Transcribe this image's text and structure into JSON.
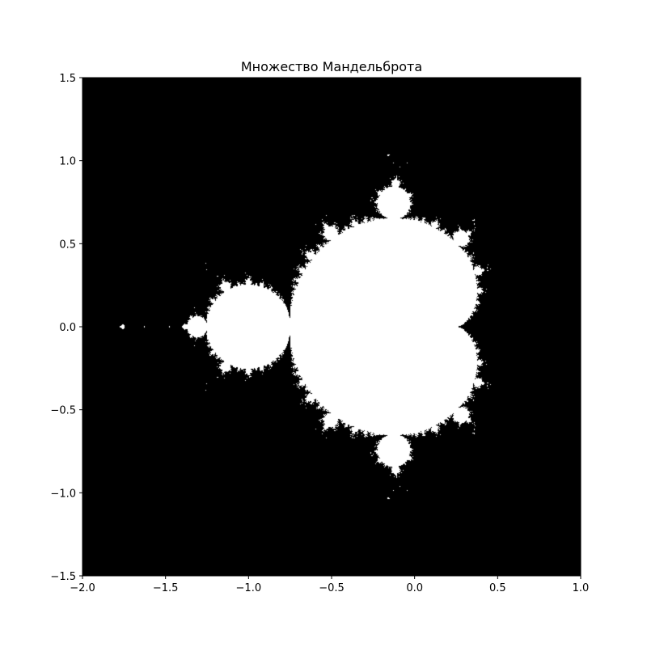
{
  "chart_data": {
    "type": "heatmap",
    "title": "Множество Мандельброта",
    "xlabel": "",
    "ylabel": "",
    "xlim": [
      -2.0,
      1.0
    ],
    "ylim": [
      -1.5,
      1.5
    ],
    "xticks": [
      {
        "value": -2.0,
        "label": "−2.0"
      },
      {
        "value": -1.5,
        "label": "−1.5"
      },
      {
        "value": -1.0,
        "label": "−1.0"
      },
      {
        "value": -0.5,
        "label": "−0.5"
      },
      {
        "value": 0.0,
        "label": "0.0"
      },
      {
        "value": 0.5,
        "label": "0.5"
      },
      {
        "value": 1.0,
        "label": "1.0"
      }
    ],
    "yticks": [
      {
        "value": -1.5,
        "label": "−1.5"
      },
      {
        "value": -1.0,
        "label": "−1.0"
      },
      {
        "value": -0.5,
        "label": "−0.5"
      },
      {
        "value": 0.0,
        "label": "0.0"
      },
      {
        "value": 0.5,
        "label": "0.5"
      },
      {
        "value": 1.0,
        "label": "1.0"
      },
      {
        "value": 1.5,
        "label": "1.5"
      }
    ],
    "grid": false,
    "colormap": {
      "in_set": "#ffffff",
      "outside": "#000000"
    }
  },
  "colors": {
    "background": "#ffffff",
    "axis": "#000000"
  }
}
